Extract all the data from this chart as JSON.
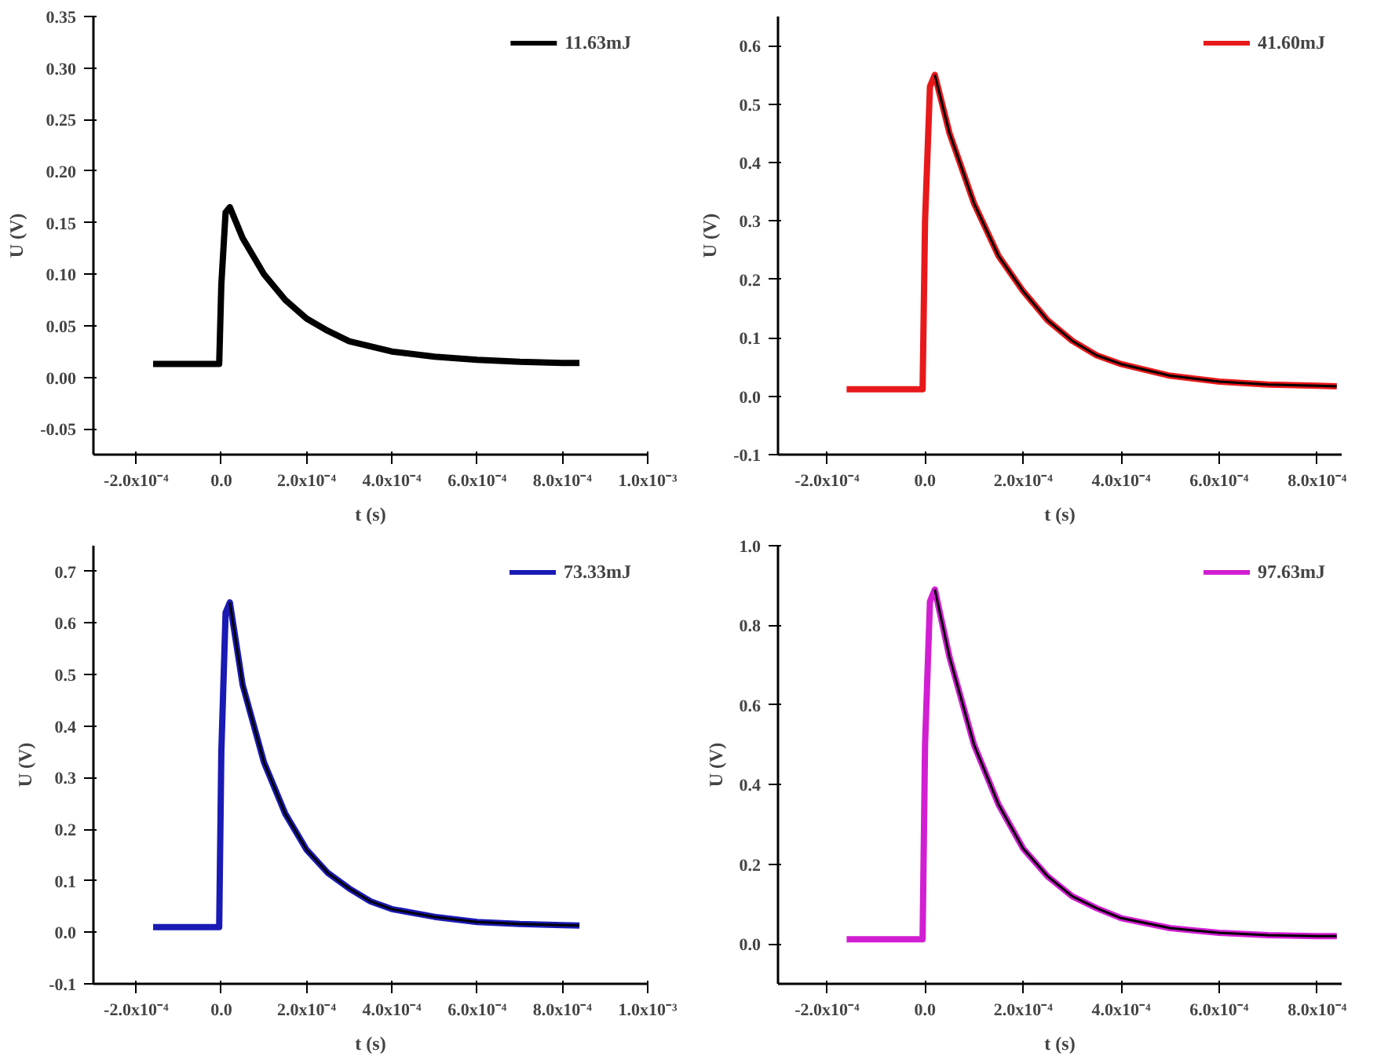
{
  "chart_data": [
    {
      "type": "line",
      "xlabel": "t (s)",
      "ylabel": "U (V)",
      "grid": false,
      "legend": "top right",
      "xlim": [
        -0.0003,
        0.001
      ],
      "ylim": [
        -0.075,
        0.35
      ],
      "xticks": [
        {
          "value": -0.0002,
          "label": "-2.0x10⁻⁴"
        },
        {
          "value": 0,
          "label": "0.0"
        },
        {
          "value": 0.0002,
          "label": "2.0x10⁻⁴"
        },
        {
          "value": 0.0004,
          "label": "4.0x10⁻⁴"
        },
        {
          "value": 0.0006,
          "label": "6.0x10⁻⁴"
        },
        {
          "value": 0.0008,
          "label": "8.0x10⁻⁴"
        },
        {
          "value": 0.001,
          "label": "1.0x10⁻³"
        }
      ],
      "yticks": [
        {
          "value": -0.05,
          "label": "-0.05"
        },
        {
          "value": 0,
          "label": "0.00"
        },
        {
          "value": 0.05,
          "label": "0.05"
        },
        {
          "value": 0.1,
          "label": "0.10"
        },
        {
          "value": 0.15,
          "label": "0.15"
        },
        {
          "value": 0.2,
          "label": "0.20"
        },
        {
          "value": 0.25,
          "label": "0.25"
        },
        {
          "value": 0.3,
          "label": "0.30"
        },
        {
          "value": 0.35,
          "label": "0.35"
        }
      ],
      "series": [
        {
          "name": "11.63mJ",
          "color": "#000000",
          "x": [
            -0.00016,
            -0.00012,
            -8e-05,
            -4e-05,
            -5e-06,
            0,
            1e-05,
            2e-05,
            5e-05,
            0.0001,
            0.00015,
            0.0002,
            0.00025,
            0.0003,
            0.00035,
            0.0004,
            0.0005,
            0.0006,
            0.0007,
            0.0008,
            0.00084
          ],
          "values": [
            0.013,
            0.013,
            0.013,
            0.013,
            0.013,
            0.09,
            0.16,
            0.165,
            0.135,
            0.1,
            0.075,
            0.057,
            0.045,
            0.035,
            0.03,
            0.025,
            0.02,
            0.017,
            0.015,
            0.014,
            0.014
          ]
        }
      ]
    },
    {
      "type": "line",
      "xlabel": "t (s)",
      "ylabel": "U (V)",
      "grid": false,
      "legend": "top right",
      "xlim": [
        -0.0003,
        0.00085
      ],
      "ylim": [
        -0.1,
        0.65
      ],
      "xticks": [
        {
          "value": -0.0002,
          "label": "-2.0x10⁻⁴"
        },
        {
          "value": 0,
          "label": "0.0"
        },
        {
          "value": 0.0002,
          "label": "2.0x10⁻⁴"
        },
        {
          "value": 0.0004,
          "label": "4.0x10⁻⁴"
        },
        {
          "value": 0.0006,
          "label": "6.0x10⁻⁴"
        },
        {
          "value": 0.0008,
          "label": "8.0x10⁻⁴"
        }
      ],
      "yticks": [
        -0.1,
        {
          "value": 0,
          "label": "0.0"
        },
        0.1,
        0.2,
        0.3,
        0.4,
        0.5,
        0.6
      ],
      "series": [
        {
          "name": "41.60mJ",
          "color": "#e8191b",
          "x": [
            -0.00016,
            -0.00012,
            -8e-05,
            -4e-05,
            -5e-06,
            0,
            1e-05,
            2e-05,
            5e-05,
            0.0001,
            0.00015,
            0.0002,
            0.00025,
            0.0003,
            0.00035,
            0.0004,
            0.0005,
            0.0006,
            0.0007,
            0.0008,
            0.00084
          ],
          "values": [
            0.012,
            0.012,
            0.012,
            0.012,
            0.012,
            0.3,
            0.53,
            0.55,
            0.45,
            0.33,
            0.24,
            0.18,
            0.13,
            0.095,
            0.07,
            0.055,
            0.035,
            0.025,
            0.02,
            0.018,
            0.017
          ]
        },
        {
          "type": "line",
          "color": "#000000",
          "x": [
            2e-05,
            5e-05,
            0.0001,
            0.00015,
            0.0002,
            0.00025,
            0.0003,
            0.00035,
            0.0004,
            0.0005,
            0.0006,
            0.0007,
            0.0008,
            0.00084
          ],
          "values": [
            0.55,
            0.45,
            0.33,
            0.24,
            0.18,
            0.13,
            0.095,
            0.07,
            0.055,
            0.035,
            0.025,
            0.02,
            0.018,
            0.017
          ]
        }
      ]
    },
    {
      "type": "line",
      "xlabel": "t (s)",
      "ylabel": "U (V)",
      "grid": false,
      "legend": "top right",
      "xlim": [
        -0.0003,
        0.001
      ],
      "ylim": [
        -0.1,
        0.75
      ],
      "xticks": [
        {
          "value": -0.0002,
          "label": "-2.0x10⁻⁴"
        },
        {
          "value": 0,
          "label": "0.0"
        },
        {
          "value": 0.0002,
          "label": "2.0x10⁻⁴"
        },
        {
          "value": 0.0004,
          "label": "4.0x10⁻⁴"
        },
        {
          "value": 0.0006,
          "label": "6.0x10⁻⁴"
        },
        {
          "value": 0.0008,
          "label": "8.0x10⁻⁴"
        },
        {
          "value": 0.001,
          "label": "1.0x10⁻³"
        }
      ],
      "yticks": [
        -0.1,
        {
          "value": 0,
          "label": "0.0"
        },
        0.1,
        0.2,
        0.3,
        0.4,
        0.5,
        0.6,
        0.7
      ],
      "series": [
        {
          "name": "73.33mJ",
          "color": "#1a1ab4",
          "x": [
            -0.00016,
            -0.00012,
            -8e-05,
            -4e-05,
            -5e-06,
            0,
            1e-05,
            2e-05,
            5e-05,
            0.0001,
            0.00015,
            0.0002,
            0.00025,
            0.0003,
            0.00035,
            0.0004,
            0.0005,
            0.0006,
            0.0007,
            0.0008,
            0.00084
          ],
          "values": [
            0.01,
            0.01,
            0.01,
            0.01,
            0.01,
            0.35,
            0.62,
            0.64,
            0.48,
            0.33,
            0.23,
            0.16,
            0.115,
            0.085,
            0.06,
            0.045,
            0.03,
            0.02,
            0.016,
            0.014,
            0.013
          ]
        },
        {
          "type": "line",
          "color": "#000000",
          "x": [
            2e-05,
            5e-05,
            0.0001,
            0.00015,
            0.0002,
            0.00025,
            0.0003,
            0.00035,
            0.0004,
            0.0005,
            0.0006,
            0.0007,
            0.0008,
            0.00084
          ],
          "values": [
            0.64,
            0.48,
            0.33,
            0.23,
            0.16,
            0.115,
            0.085,
            0.06,
            0.045,
            0.03,
            0.02,
            0.016,
            0.014,
            0.013
          ]
        }
      ]
    },
    {
      "type": "line",
      "xlabel": "t (s)",
      "ylabel": "U (V)",
      "grid": false,
      "legend": "top right",
      "xlim": [
        -0.0003,
        0.00085
      ],
      "ylim": [
        -0.1,
        1.0
      ],
      "xticks": [
        {
          "value": -0.0002,
          "label": "-2.0x10⁻⁴"
        },
        {
          "value": 0,
          "label": "0.0"
        },
        {
          "value": 0.0002,
          "label": "2.0x10⁻⁴"
        },
        {
          "value": 0.0004,
          "label": "4.0x10⁻⁴"
        },
        {
          "value": 0.0006,
          "label": "6.0x10⁻⁴"
        },
        {
          "value": 0.0008,
          "label": "8.0x10⁻⁴"
        }
      ],
      "yticks": [
        {
          "value": 0,
          "label": "0.0"
        },
        0.2,
        0.4,
        0.6,
        0.8,
        {
          "value": 1.0,
          "label": "1.0"
        }
      ],
      "series": [
        {
          "name": "97.63mJ",
          "color": "#d21ed2",
          "x": [
            -0.00016,
            -0.00012,
            -8e-05,
            -4e-05,
            -5e-06,
            0,
            1e-05,
            2e-05,
            5e-05,
            0.0001,
            0.00015,
            0.0002,
            0.00025,
            0.0003,
            0.00035,
            0.0004,
            0.0005,
            0.0006,
            0.0007,
            0.0008,
            0.00084
          ],
          "values": [
            0.012,
            0.012,
            0.012,
            0.012,
            0.012,
            0.5,
            0.86,
            0.89,
            0.72,
            0.5,
            0.35,
            0.24,
            0.17,
            0.12,
            0.09,
            0.065,
            0.04,
            0.028,
            0.022,
            0.02,
            0.02
          ]
        },
        {
          "type": "line",
          "color": "#000000",
          "x": [
            2e-05,
            5e-05,
            0.0001,
            0.00015,
            0.0002,
            0.00025,
            0.0003,
            0.00035,
            0.0004,
            0.0005,
            0.0006,
            0.0007,
            0.0008,
            0.00084
          ],
          "values": [
            0.89,
            0.72,
            0.5,
            0.35,
            0.24,
            0.17,
            0.12,
            0.09,
            0.065,
            0.04,
            0.028,
            0.022,
            0.02,
            0.02
          ]
        }
      ]
    }
  ]
}
